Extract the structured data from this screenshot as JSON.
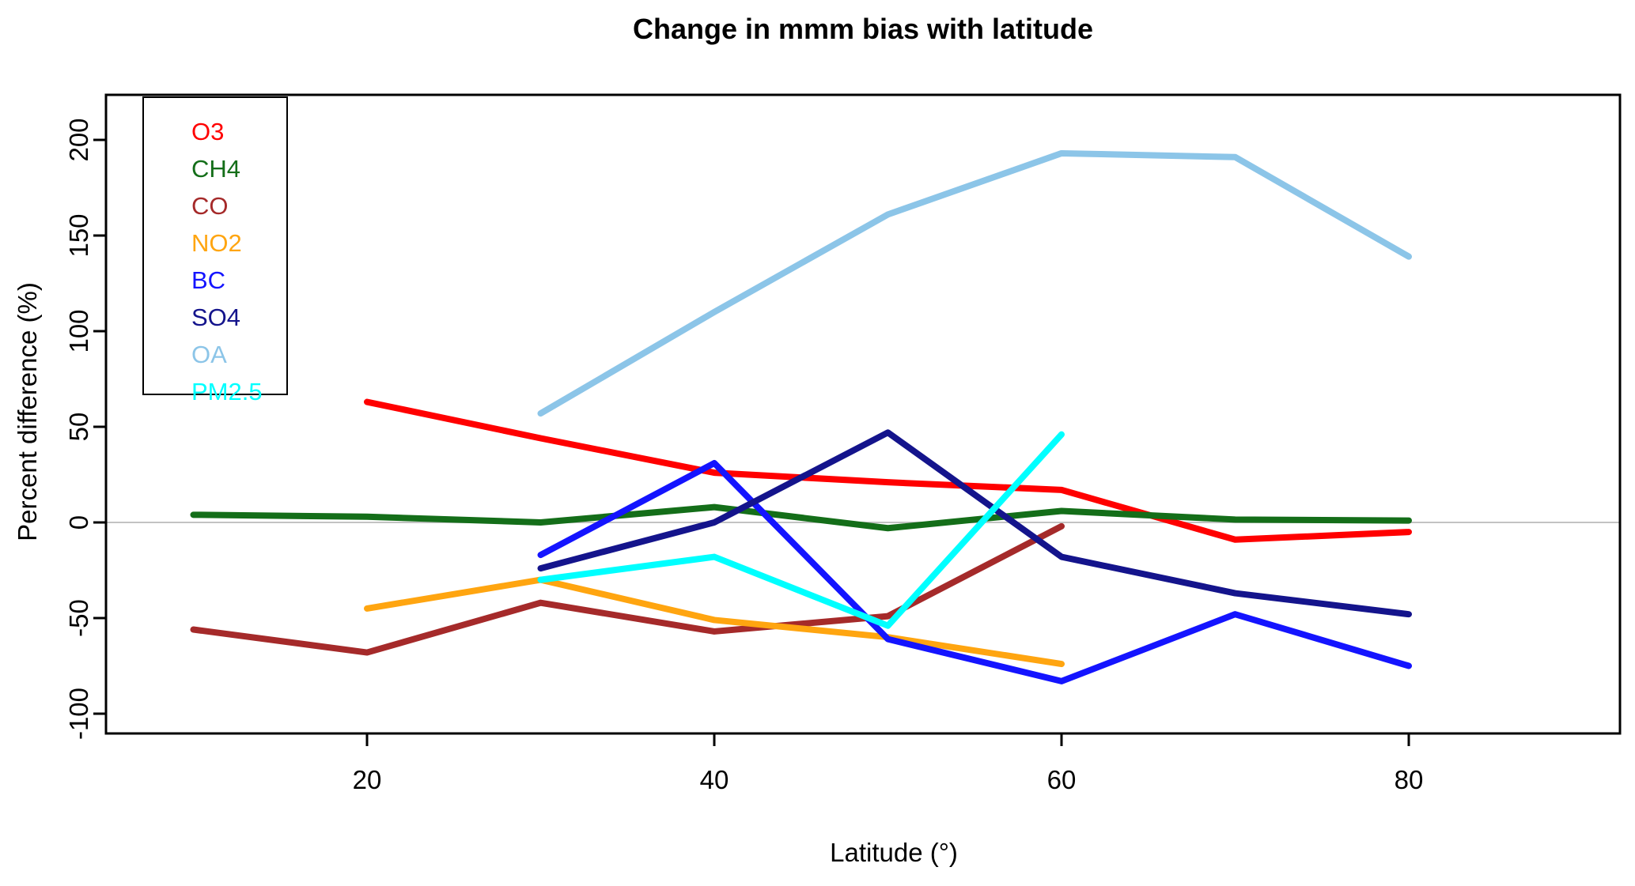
{
  "title": "Change in mmm bias with latitude",
  "x_axis": {
    "label": "Latitude (°)",
    "ticks": [
      20,
      40,
      60,
      80
    ]
  },
  "y_axis": {
    "label": "Percent difference (%)",
    "ticks": [
      -100,
      -50,
      0,
      50,
      100,
      150,
      200
    ]
  },
  "legend": {
    "items": [
      {
        "label": "O3",
        "color": "#ff0000"
      },
      {
        "label": "CH4",
        "color": "#146e19"
      },
      {
        "label": "CO",
        "color": "#a52a2a"
      },
      {
        "label": "NO2",
        "color": "#ffa510"
      },
      {
        "label": "BC",
        "color": "#1414ff"
      },
      {
        "label": "SO4",
        "color": "#14148c"
      },
      {
        "label": "OA",
        "color": "#8cc5e8"
      },
      {
        "label": "PM2.5",
        "color": "#00ffff"
      }
    ]
  },
  "chart_data": {
    "type": "line",
    "title": "Change in mmm bias with latitude",
    "xlabel": "Latitude (°)",
    "ylabel": "Percent difference (%)",
    "xlim": [
      5,
      92
    ],
    "ylim": [
      -110,
      224
    ],
    "grid": false,
    "zero_line_color": "#c3c3c3",
    "legend_position": "top-left",
    "series": [
      {
        "name": "O3",
        "color": "#ff0000",
        "x": [
          20,
          30,
          40,
          50,
          60,
          70,
          80
        ],
        "y": [
          63,
          44,
          26,
          21,
          17,
          -9,
          -5
        ]
      },
      {
        "name": "CH4",
        "color": "#146e19",
        "x": [
          10,
          20,
          30,
          40,
          50,
          60,
          70,
          80
        ],
        "y": [
          4,
          3,
          0,
          8,
          -3,
          6,
          1.5,
          1
        ]
      },
      {
        "name": "CO",
        "color": "#a52a2a",
        "x": [
          10,
          20,
          30,
          40,
          50,
          60
        ],
        "y": [
          -56,
          -68,
          -42,
          -57,
          -49,
          -2
        ]
      },
      {
        "name": "NO2",
        "color": "#ffa510",
        "x": [
          20,
          30,
          40,
          50,
          60
        ],
        "y": [
          -45,
          -30,
          -51,
          -60,
          -74
        ]
      },
      {
        "name": "BC",
        "color": "#1414ff",
        "x": [
          30,
          40,
          50,
          60,
          70,
          80
        ],
        "y": [
          -17,
          31,
          -61,
          -83,
          -48,
          -75
        ]
      },
      {
        "name": "SO4",
        "color": "#14148c",
        "x": [
          30,
          40,
          50,
          60,
          70,
          80
        ],
        "y": [
          -24,
          0,
          47,
          -18,
          -37,
          -48
        ]
      },
      {
        "name": "OA",
        "color": "#8cc5e8",
        "x": [
          30,
          40,
          50,
          60,
          70,
          80
        ],
        "y": [
          57,
          110,
          161,
          193,
          191,
          139
        ]
      },
      {
        "name": "PM2.5",
        "color": "#00ffff",
        "x": [
          30,
          40,
          50,
          60
        ],
        "y": [
          -30,
          -18,
          -54,
          46
        ]
      }
    ]
  }
}
